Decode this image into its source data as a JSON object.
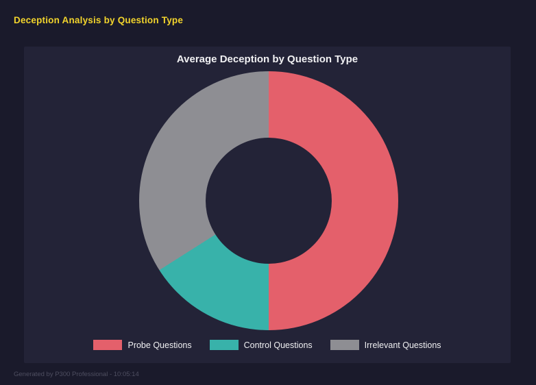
{
  "page": {
    "title": "Deception Analysis by Question Type",
    "footer": "Generated by P300 Professional - 10:05:14"
  },
  "chart_data": {
    "type": "pie",
    "subtype": "donut",
    "title": "Average Deception by Question Type",
    "categories": [
      "Probe Questions",
      "Control Questions",
      "Irrelevant Questions"
    ],
    "values": [
      50,
      16,
      34
    ],
    "unit": "percent",
    "colors": [
      "#e4606b",
      "#38b2aa",
      "#8e8e93"
    ],
    "start_angle_deg": 0,
    "direction": "clockwise",
    "hole_ratio": 0.49,
    "legend_position": "bottom",
    "background": "#232337"
  },
  "theme": {
    "page_background": "#1a1a2b",
    "panel_background": "#232337",
    "title_color": "#f2d42c",
    "text_color": "#f0f0f2",
    "footer_color": "#4e4e60"
  }
}
